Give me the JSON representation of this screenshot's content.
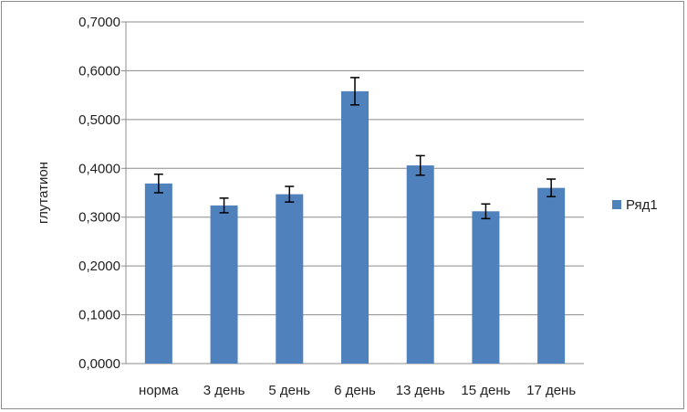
{
  "chart_data": {
    "type": "bar",
    "categories": [
      "норма",
      "3 день",
      "5 день",
      "6 день",
      "13 день",
      "15 день",
      "17 день"
    ],
    "series": [
      {
        "name": "Ряд1",
        "values": [
          0.369,
          0.324,
          0.347,
          0.558,
          0.406,
          0.312,
          0.36
        ],
        "errors": [
          0.019,
          0.015,
          0.016,
          0.028,
          0.02,
          0.015,
          0.018
        ]
      }
    ],
    "ylabel": "глутатион",
    "ylim": [
      0,
      0.7
    ],
    "yticks": [
      "0,0000",
      "0,1000",
      "0,2000",
      "0,3000",
      "0,4000",
      "0,5000",
      "0,6000",
      "0,7000"
    ],
    "grid": true,
    "legend": "right",
    "colors": {
      "bar": "#4f81bd",
      "grid": "#8c8c8c",
      "axis": "#8c8c8c",
      "error": "#000000"
    }
  }
}
